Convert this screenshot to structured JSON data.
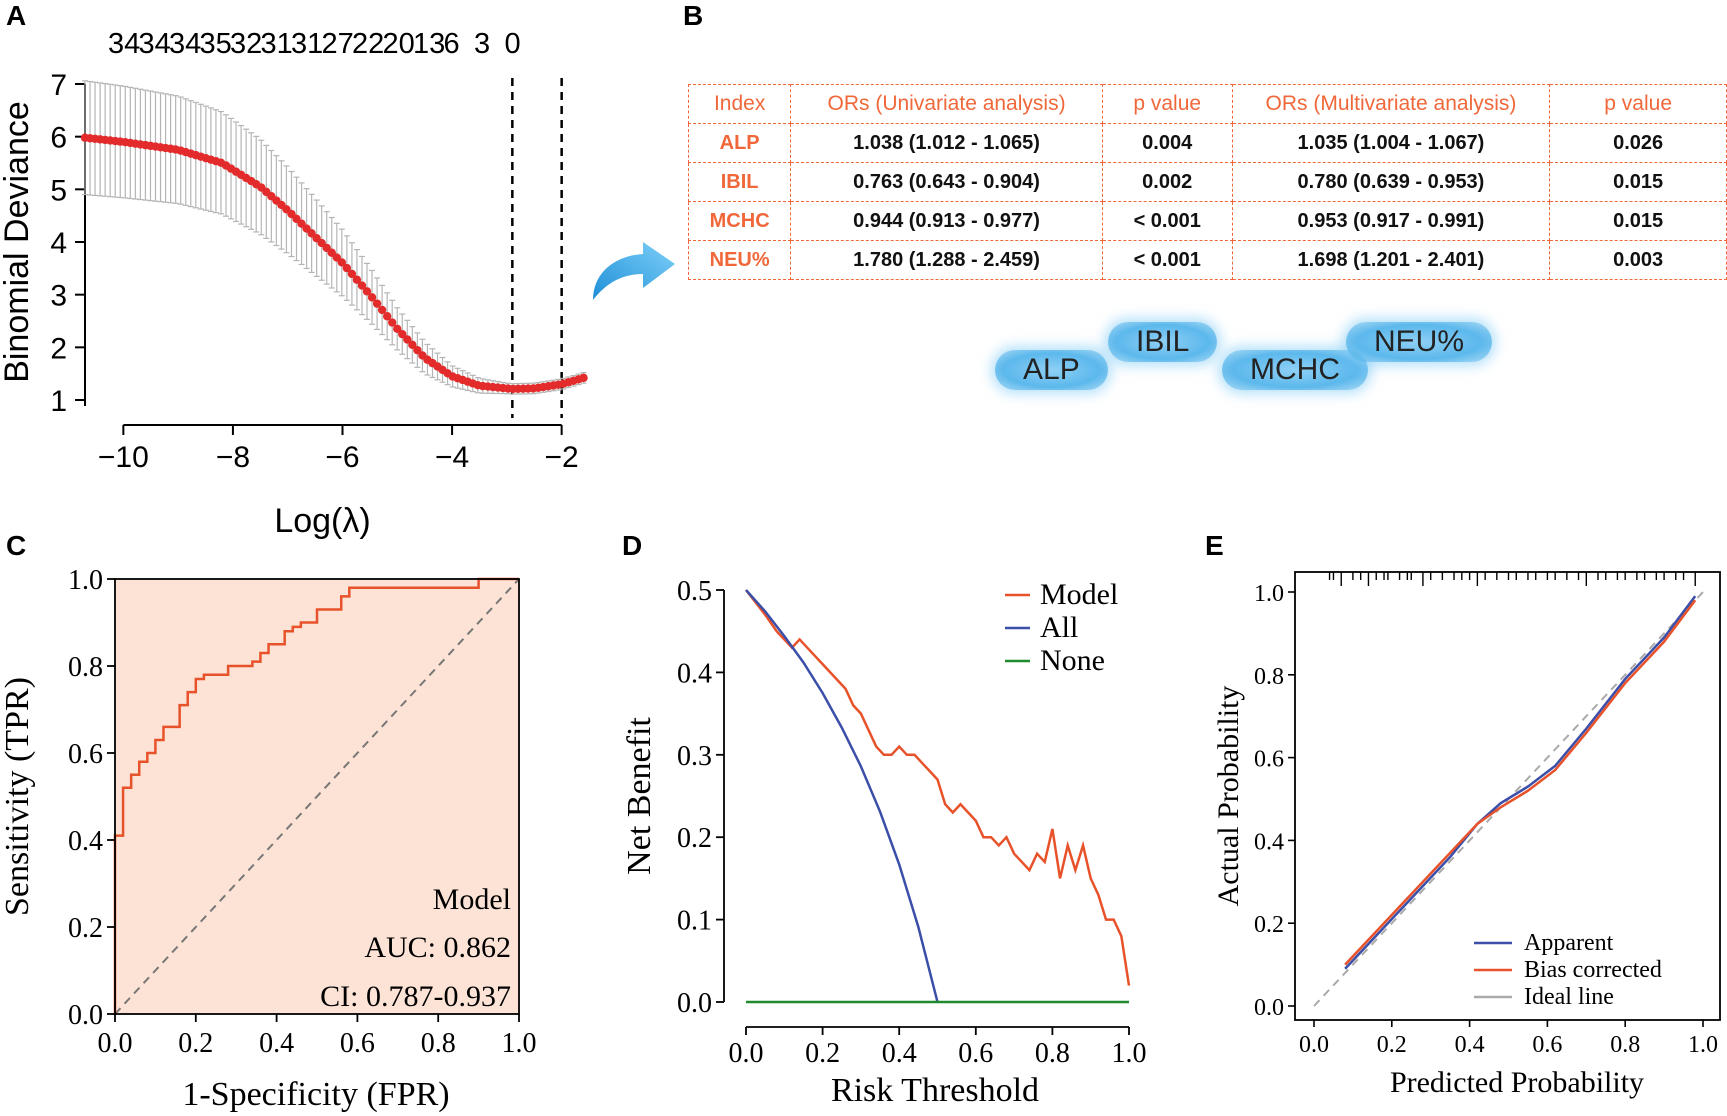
{
  "panels": {
    "a": "A",
    "b": "B",
    "c": "C",
    "d": "D",
    "e": "E"
  },
  "chart_data": [
    {
      "id": "A",
      "type": "line",
      "title": "",
      "top_labels": [
        "34",
        "34",
        "34",
        "35",
        "32",
        "31",
        "31",
        "27",
        "22",
        "20",
        "13",
        "6",
        "3",
        "0"
      ],
      "xlabel": "Log(λ)",
      "ylabel": "Binomial Deviance",
      "xlim": [
        -10.7,
        -1.3
      ],
      "ylim": [
        1,
        7
      ],
      "xticks": [
        "-10",
        "-8",
        "-6",
        "-4",
        "-2"
      ],
      "xtick_values": [
        -10,
        -8,
        -6,
        -4,
        -2
      ],
      "yticks": [
        "1",
        "2",
        "3",
        "4",
        "5",
        "6",
        "7"
      ],
      "ytick_values": [
        1,
        2,
        3,
        4,
        5,
        6,
        7
      ],
      "vlines": [
        -2.9,
        -2.0
      ],
      "series": [
        {
          "name": "deviance",
          "x": [
            -10.7,
            -10,
            -9,
            -8.2,
            -7.5,
            -7,
            -6.5,
            -6,
            -5.5,
            -5,
            -4.5,
            -4,
            -3.5,
            -3,
            -2.9,
            -2.5,
            -2,
            -1.6
          ],
          "y": [
            5.98,
            5.9,
            5.75,
            5.5,
            5.05,
            4.6,
            4.1,
            3.6,
            3.0,
            2.35,
            1.8,
            1.45,
            1.27,
            1.22,
            1.21,
            1.22,
            1.3,
            1.42
          ],
          "err": [
            1.08,
            1.06,
            1.02,
            0.97,
            0.9,
            0.82,
            0.73,
            0.63,
            0.52,
            0.4,
            0.3,
            0.2,
            0.14,
            0.1,
            0.1,
            0.1,
            0.1,
            0.1
          ]
        }
      ]
    },
    {
      "id": "C",
      "type": "line",
      "xlabel": "1-Specificity (FPR)",
      "ylabel": "Sensitivity (TPR)",
      "xlim": [
        0,
        1
      ],
      "ylim": [
        0,
        1
      ],
      "xticks": [
        "0.0",
        "0.2",
        "0.4",
        "0.6",
        "0.8",
        "1.0"
      ],
      "xtick_values": [
        0,
        0.2,
        0.4,
        0.6,
        0.8,
        1.0
      ],
      "yticks": [
        "0.0",
        "0.2",
        "0.4",
        "0.6",
        "0.8",
        "1.0"
      ],
      "ytick_values": [
        0,
        0.2,
        0.4,
        0.6,
        0.8,
        1.0
      ],
      "roc": {
        "x": [
          0,
          0,
          0.02,
          0.02,
          0.04,
          0.04,
          0.06,
          0.06,
          0.08,
          0.08,
          0.1,
          0.1,
          0.12,
          0.12,
          0.16,
          0.16,
          0.18,
          0.18,
          0.2,
          0.2,
          0.22,
          0.22,
          0.28,
          0.28,
          0.34,
          0.34,
          0.36,
          0.36,
          0.38,
          0.38,
          0.42,
          0.42,
          0.44,
          0.44,
          0.46,
          0.46,
          0.5,
          0.5,
          0.56,
          0.56,
          0.58,
          0.58,
          0.64,
          0.64,
          0.86,
          0.9,
          0.9,
          1.0
        ],
        "y": [
          0,
          0.41,
          0.41,
          0.52,
          0.52,
          0.55,
          0.55,
          0.58,
          0.58,
          0.6,
          0.6,
          0.63,
          0.63,
          0.66,
          0.66,
          0.71,
          0.71,
          0.74,
          0.74,
          0.77,
          0.77,
          0.78,
          0.78,
          0.8,
          0.8,
          0.81,
          0.81,
          0.83,
          0.83,
          0.85,
          0.85,
          0.88,
          0.88,
          0.89,
          0.89,
          0.9,
          0.9,
          0.93,
          0.93,
          0.96,
          0.96,
          0.98,
          0.98,
          0.98,
          0.98,
          0.98,
          1.0,
          1.0
        ]
      },
      "annotations": [
        "Model",
        "AUC: 0.862",
        "CI: 0.787-0.937"
      ]
    },
    {
      "id": "D",
      "type": "line",
      "xlabel": "Risk Threshold",
      "ylabel": "Net Benefit",
      "xlim": [
        0,
        1
      ],
      "ylim": [
        0,
        0.5
      ],
      "xticks": [
        "0.0",
        "0.2",
        "0.4",
        "0.6",
        "0.8",
        "1.0"
      ],
      "xtick_values": [
        0,
        0.2,
        0.4,
        0.6,
        0.8,
        1.0
      ],
      "yticks": [
        "0.0",
        "0.1",
        "0.2",
        "0.3",
        "0.4",
        "0.5"
      ],
      "ytick_values": [
        0,
        0.1,
        0.2,
        0.3,
        0.4,
        0.5
      ],
      "legend": [
        "Model",
        "All",
        "None"
      ],
      "series": [
        {
          "name": "Model",
          "color": "#e8522a",
          "x": [
            0,
            0.05,
            0.08,
            0.1,
            0.12,
            0.14,
            0.16,
            0.18,
            0.2,
            0.22,
            0.24,
            0.26,
            0.28,
            0.3,
            0.32,
            0.34,
            0.36,
            0.38,
            0.4,
            0.42,
            0.44,
            0.46,
            0.48,
            0.5,
            0.52,
            0.54,
            0.56,
            0.58,
            0.6,
            0.62,
            0.64,
            0.66,
            0.68,
            0.7,
            0.72,
            0.74,
            0.76,
            0.78,
            0.8,
            0.82,
            0.84,
            0.86,
            0.88,
            0.9,
            0.92,
            0.94,
            0.96,
            0.98,
            1.0
          ],
          "y": [
            0.5,
            0.47,
            0.45,
            0.44,
            0.43,
            0.44,
            0.43,
            0.42,
            0.41,
            0.4,
            0.39,
            0.38,
            0.36,
            0.35,
            0.33,
            0.31,
            0.3,
            0.3,
            0.31,
            0.3,
            0.3,
            0.29,
            0.28,
            0.27,
            0.24,
            0.23,
            0.24,
            0.23,
            0.22,
            0.2,
            0.2,
            0.19,
            0.2,
            0.18,
            0.17,
            0.16,
            0.18,
            0.17,
            0.21,
            0.15,
            0.19,
            0.16,
            0.19,
            0.15,
            0.13,
            0.1,
            0.1,
            0.08,
            0.02
          ]
        },
        {
          "name": "All",
          "color": "#3b4ea8",
          "x": [
            0,
            0.05,
            0.1,
            0.15,
            0.2,
            0.25,
            0.3,
            0.35,
            0.4,
            0.45,
            0.5
          ],
          "y": [
            0.5,
            0.474,
            0.444,
            0.412,
            0.375,
            0.333,
            0.286,
            0.231,
            0.167,
            0.091,
            0.0
          ]
        },
        {
          "name": "None",
          "color": "#1f8a2e",
          "x": [
            0,
            1
          ],
          "y": [
            0,
            0
          ]
        }
      ]
    },
    {
      "id": "E",
      "type": "line",
      "xlabel": "Predicted Probability",
      "ylabel": "Actual Probability",
      "xlim": [
        0,
        1
      ],
      "ylim": [
        0,
        1
      ],
      "xticks": [
        "0.0",
        "0.2",
        "0.4",
        "0.6",
        "0.8",
        "1.0"
      ],
      "xtick_values": [
        0,
        0.2,
        0.4,
        0.6,
        0.8,
        1.0
      ],
      "yticks": [
        "0.0",
        "0.2",
        "0.4",
        "0.6",
        "0.8",
        "1.0"
      ],
      "ytick_values": [
        0,
        0.2,
        0.4,
        0.6,
        0.8,
        1.0
      ],
      "legend": [
        "Apparent",
        "Bias corrected",
        "Ideal line"
      ],
      "series": [
        {
          "name": "Apparent",
          "color": "#3b4ea8",
          "x": [
            0.08,
            0.15,
            0.25,
            0.35,
            0.42,
            0.48,
            0.55,
            0.62,
            0.7,
            0.8,
            0.9,
            0.98
          ],
          "y": [
            0.09,
            0.16,
            0.26,
            0.36,
            0.44,
            0.49,
            0.53,
            0.58,
            0.67,
            0.79,
            0.89,
            0.99
          ]
        },
        {
          "name": "Bias corrected",
          "color": "#e8522a",
          "x": [
            0.08,
            0.15,
            0.25,
            0.35,
            0.42,
            0.48,
            0.55,
            0.62,
            0.7,
            0.8,
            0.9,
            0.98
          ],
          "y": [
            0.1,
            0.17,
            0.27,
            0.37,
            0.44,
            0.48,
            0.52,
            0.57,
            0.66,
            0.78,
            0.88,
            0.98
          ]
        },
        {
          "name": "Ideal line",
          "color": "#aaaaaa",
          "x": [
            0,
            1
          ],
          "y": [
            0,
            1
          ]
        }
      ],
      "rug": [
        0.04,
        0.05,
        0.07,
        0.1,
        0.12,
        0.14,
        0.16,
        0.18,
        0.19,
        0.22,
        0.24,
        0.25,
        0.28,
        0.3,
        0.33,
        0.36,
        0.38,
        0.4,
        0.42,
        0.44,
        0.47,
        0.5,
        0.52,
        0.55,
        0.57,
        0.6,
        0.62,
        0.65,
        0.68,
        0.7,
        0.73,
        0.75,
        0.78,
        0.8,
        0.83,
        0.85,
        0.88,
        0.9,
        0.93,
        0.95,
        0.98
      ]
    }
  ],
  "table": {
    "headers": [
      "Index",
      "ORs (Univariate analysis)",
      "p value",
      "ORs (Multivariate analysis)",
      "p value"
    ],
    "rows": [
      [
        "ALP",
        "1.038 (1.012 - 1.065)",
        "0.004",
        "1.035 (1.004 - 1.067)",
        "0.026"
      ],
      [
        "IBIL",
        "0.763 (0.643 - 0.904)",
        "0.002",
        "0.780 (0.639 - 0.953)",
        "0.015"
      ],
      [
        "MCHC",
        "0.944 (0.913 - 0.977)",
        "< 0.001",
        "0.953 (0.917 - 0.991)",
        "0.015"
      ],
      [
        "NEU%",
        "1.780 (1.288 - 2.459)",
        "< 0.001",
        "1.698 (1.201 - 2.401)",
        "0.003"
      ]
    ]
  },
  "pills": [
    "ALP",
    "IBIL",
    "MCHC",
    "NEU%"
  ],
  "colors": {
    "accent": "#f0683a",
    "red": "#e8522a",
    "blue": "#3b4ea8",
    "green": "#1f8a2e",
    "roc_fill": "#fde3d6"
  }
}
